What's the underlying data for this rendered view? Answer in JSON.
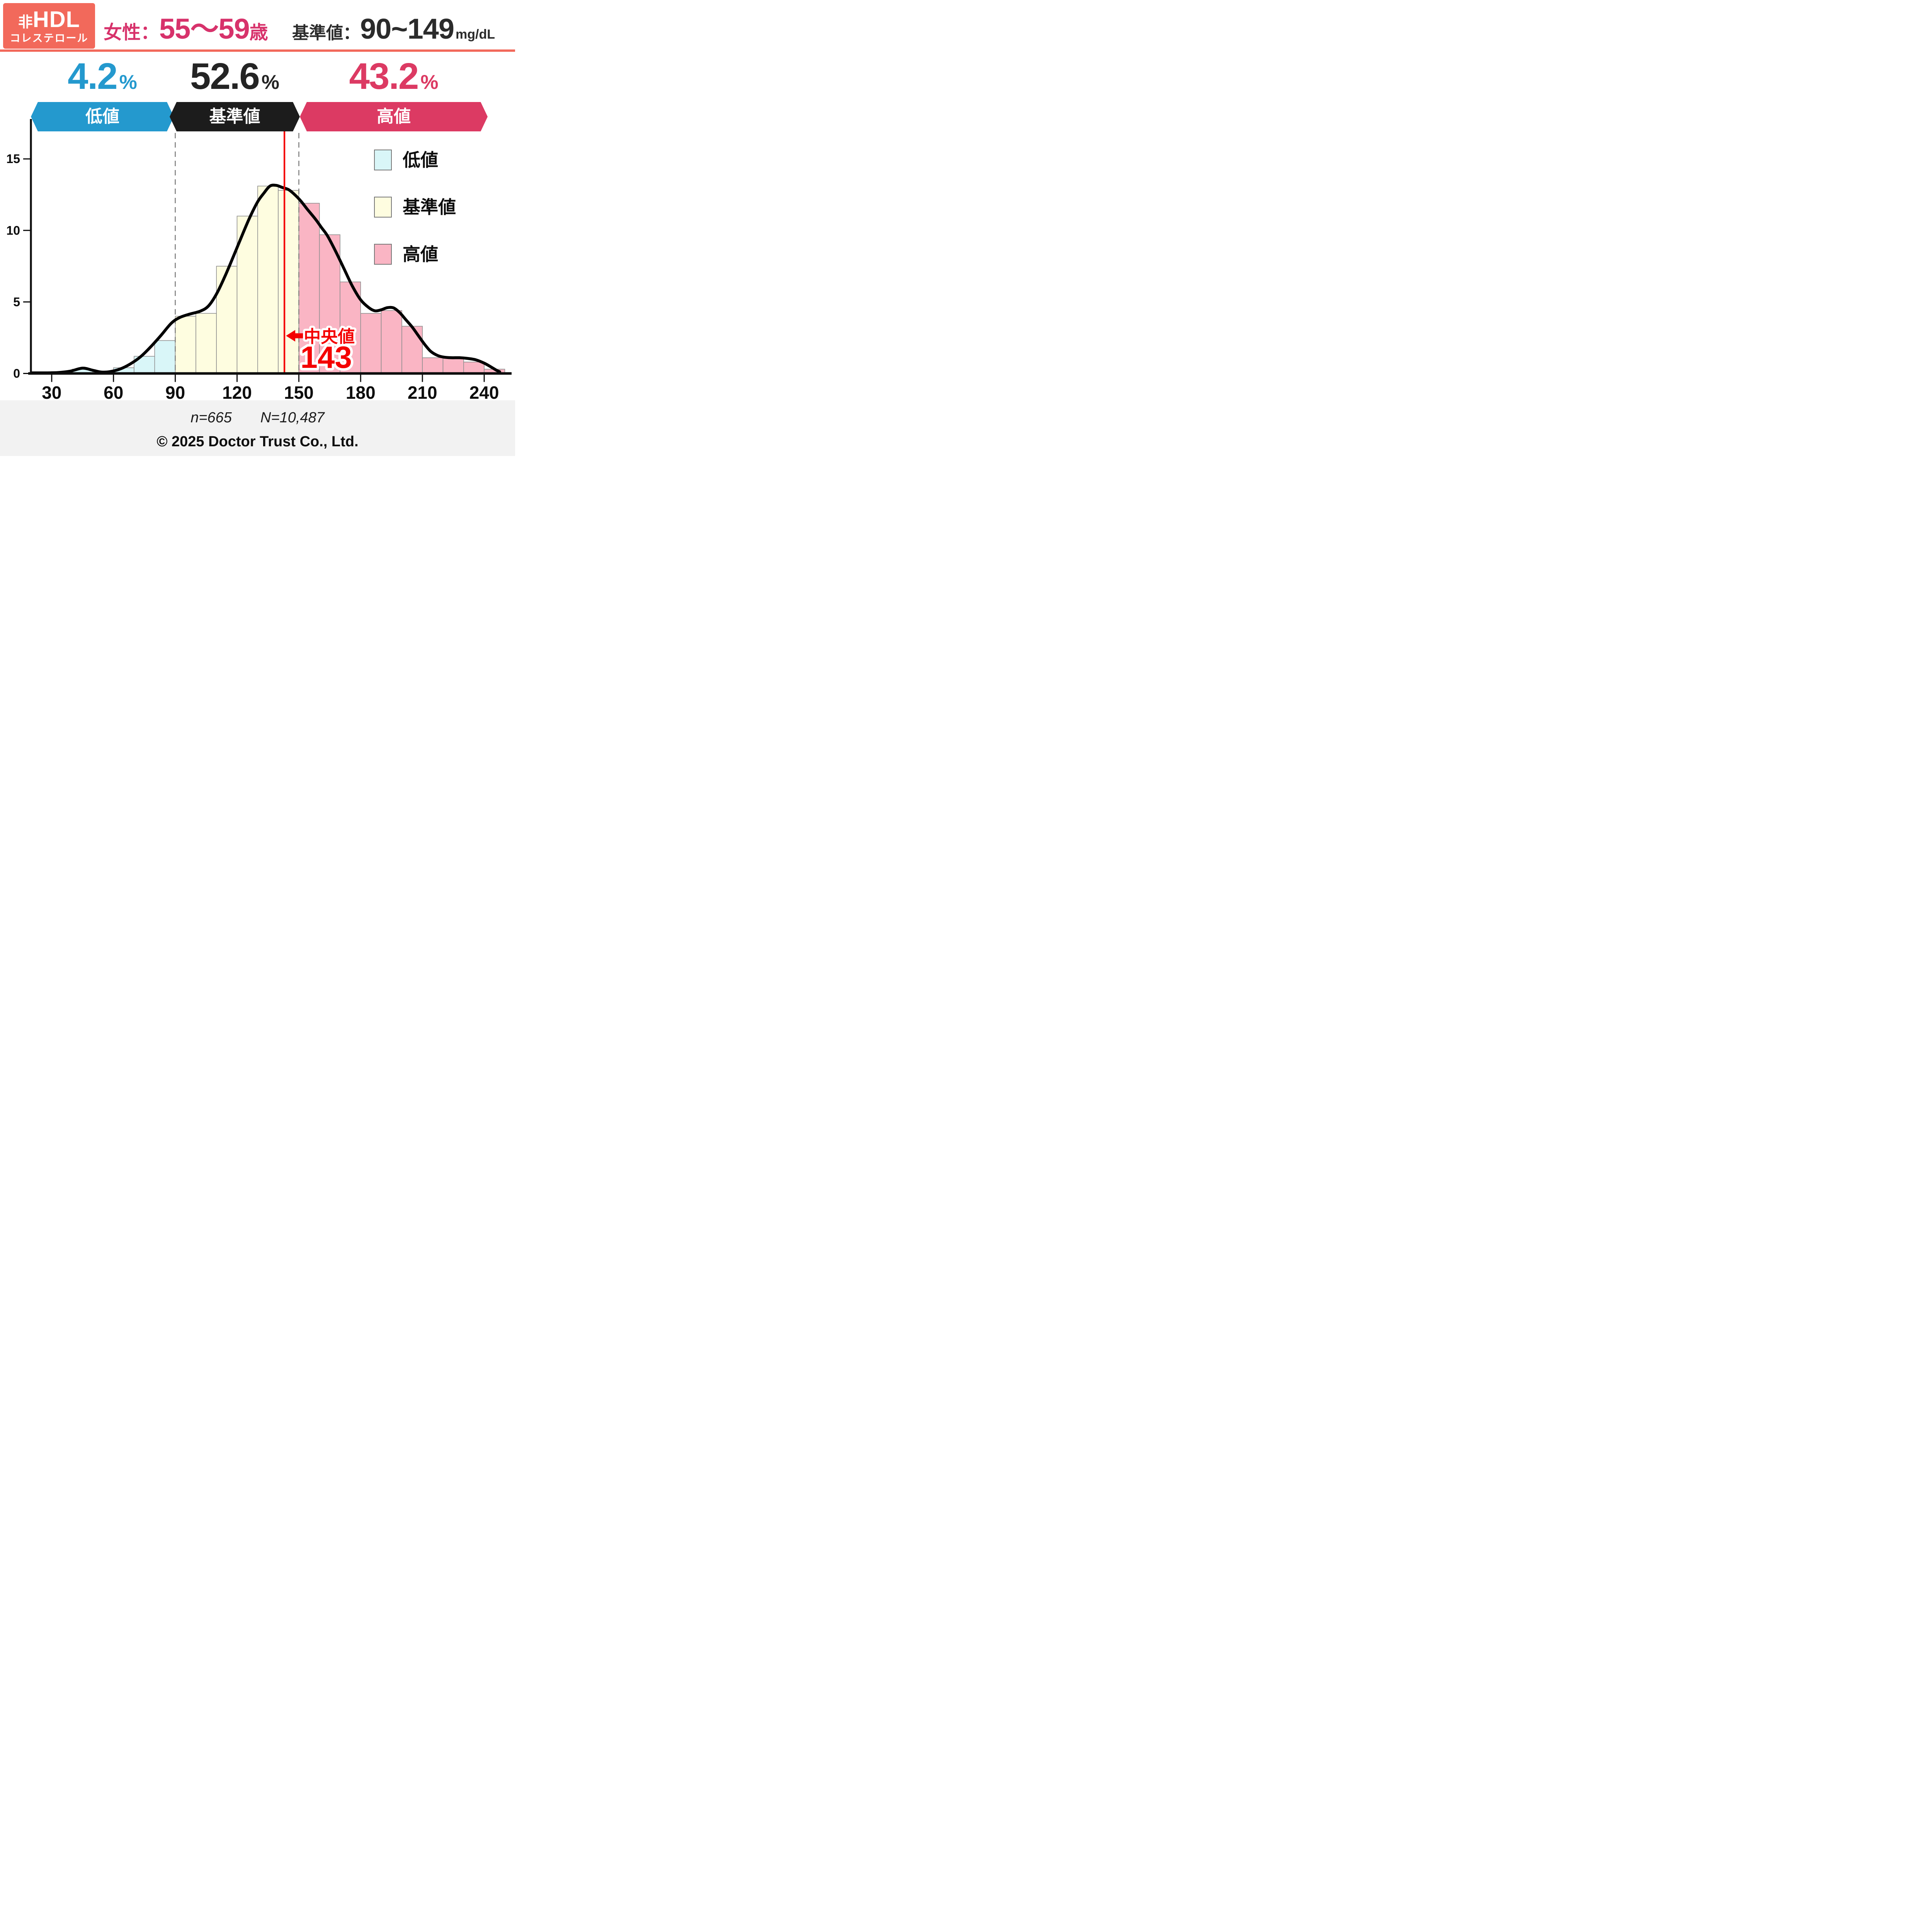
{
  "header": {
    "badge": {
      "line1_prefix": "非",
      "line1_main": "HDL",
      "line2": "コレステロール",
      "bg_color": "#F2695B"
    },
    "title": {
      "label": "女性：",
      "range": "55～59",
      "suffix": "歳",
      "color": "#D7326B"
    },
    "reference": {
      "label": "基準値：",
      "range": "90~149",
      "unit": "mg/dL",
      "color": "#2B2B2B"
    },
    "rule_color": "#F2695B"
  },
  "summary": [
    {
      "value": "4.2",
      "unit": "%",
      "zone": "低値",
      "color": "#2499CE"
    },
    {
      "value": "52.6",
      "unit": "%",
      "zone": "基準値",
      "color": "#242424"
    },
    {
      "value": "43.2",
      "unit": "%",
      "zone": "高値",
      "color": "#DC3A63"
    }
  ],
  "bands": [
    {
      "label": "低値",
      "color": "#2499CE"
    },
    {
      "label": "基準値",
      "color": "#1C1C1C"
    },
    {
      "label": "高値",
      "color": "#DC3A63"
    }
  ],
  "legend": [
    {
      "label": "低値",
      "swatch": "#D9F6F8"
    },
    {
      "label": "基準値",
      "swatch": "#FEFDE0"
    },
    {
      "label": "高値",
      "swatch": "#FAB5C4"
    }
  ],
  "footer": {
    "n": "n=665",
    "N": "N=10,487",
    "copyright": "© 2025 Doctor Trust Co., Ltd.",
    "band_color": "#F2F2F2"
  },
  "chart_data": {
    "type": "histogram+density",
    "title": "非HDLコレステロール 女性：55～59歳 分布",
    "x_ticks": [
      30,
      60,
      90,
      120,
      150,
      180,
      210,
      240
    ],
    "y_ticks": [
      0,
      5,
      10,
      15
    ],
    "x_range": [
      20,
      251
    ],
    "y_range": [
      0,
      17
    ],
    "bin_width": 10,
    "grid": false,
    "legend_position": "upper-right",
    "zone_fills": {
      "low": "#D9F6F8",
      "ref": "#FEFDE0",
      "high": "#FAB5C4"
    },
    "bins": [
      {
        "start": 40,
        "height": 0.3,
        "zone": "low"
      },
      {
        "start": 60,
        "height": 0.4,
        "zone": "low"
      },
      {
        "start": 70,
        "height": 1.2,
        "zone": "low"
      },
      {
        "start": 80,
        "height": 2.3,
        "zone": "low"
      },
      {
        "start": 90,
        "height": 4.0,
        "zone": "ref"
      },
      {
        "start": 100,
        "height": 4.2,
        "zone": "ref"
      },
      {
        "start": 110,
        "height": 7.5,
        "zone": "ref"
      },
      {
        "start": 120,
        "height": 11.0,
        "zone": "ref"
      },
      {
        "start": 130,
        "height": 13.1,
        "zone": "ref"
      },
      {
        "start": 140,
        "height": 12.8,
        "zone": "ref"
      },
      {
        "start": 150,
        "height": 11.9,
        "zone": "high"
      },
      {
        "start": 160,
        "height": 9.7,
        "zone": "high"
      },
      {
        "start": 170,
        "height": 6.4,
        "zone": "high"
      },
      {
        "start": 180,
        "height": 4.2,
        "zone": "high"
      },
      {
        "start": 190,
        "height": 4.4,
        "zone": "high"
      },
      {
        "start": 200,
        "height": 3.3,
        "zone": "high"
      },
      {
        "start": 210,
        "height": 1.1,
        "zone": "high"
      },
      {
        "start": 220,
        "height": 1.1,
        "zone": "high"
      },
      {
        "start": 230,
        "height": 0.8,
        "zone": "high"
      },
      {
        "start": 240,
        "height": 0.3,
        "zone": "high"
      }
    ],
    "zone_percentages": {
      "low": 4.2,
      "ref": 52.6,
      "high": 43.2
    },
    "reference_lines": [
      90,
      150
    ],
    "median": {
      "value": 143,
      "label": "中央値",
      "display": "143",
      "color": "#F40000"
    },
    "curve_color": "#000000",
    "curve": [
      [
        20,
        0.04
      ],
      [
        27,
        0.04
      ],
      [
        33,
        0.06
      ],
      [
        39,
        0.16
      ],
      [
        45,
        0.37
      ],
      [
        50,
        0.22
      ],
      [
        54,
        0.1
      ],
      [
        58,
        0.12
      ],
      [
        63,
        0.3
      ],
      [
        68,
        0.65
      ],
      [
        73,
        1.15
      ],
      [
        78,
        1.85
      ],
      [
        83,
        2.65
      ],
      [
        88,
        3.5
      ],
      [
        92,
        3.9
      ],
      [
        97,
        4.15
      ],
      [
        102,
        4.35
      ],
      [
        106,
        4.7
      ],
      [
        110,
        5.55
      ],
      [
        114,
        6.75
      ],
      [
        118,
        8.1
      ],
      [
        122,
        9.5
      ],
      [
        126,
        10.85
      ],
      [
        130,
        12.0
      ],
      [
        133,
        12.6
      ],
      [
        136,
        13.1
      ],
      [
        139,
        13.15
      ],
      [
        142,
        13.0
      ],
      [
        145,
        12.85
      ],
      [
        148,
        12.5
      ],
      [
        151,
        12.05
      ],
      [
        154,
        11.5
      ],
      [
        158,
        10.8
      ],
      [
        161,
        10.2
      ],
      [
        164,
        9.6
      ],
      [
        168,
        8.5
      ],
      [
        172,
        7.3
      ],
      [
        176,
        6.1
      ],
      [
        180,
        5.15
      ],
      [
        184,
        4.6
      ],
      [
        187,
        4.38
      ],
      [
        190,
        4.45
      ],
      [
        193,
        4.6
      ],
      [
        196,
        4.58
      ],
      [
        199,
        4.25
      ],
      [
        202,
        3.75
      ],
      [
        205,
        3.25
      ],
      [
        208,
        2.65
      ],
      [
        211,
        2.05
      ],
      [
        214,
        1.55
      ],
      [
        217,
        1.28
      ],
      [
        220,
        1.15
      ],
      [
        224,
        1.1
      ],
      [
        228,
        1.1
      ],
      [
        232,
        1.05
      ],
      [
        236,
        0.95
      ],
      [
        240,
        0.72
      ],
      [
        243,
        0.48
      ],
      [
        246,
        0.22
      ],
      [
        247.5,
        0.12
      ]
    ]
  }
}
